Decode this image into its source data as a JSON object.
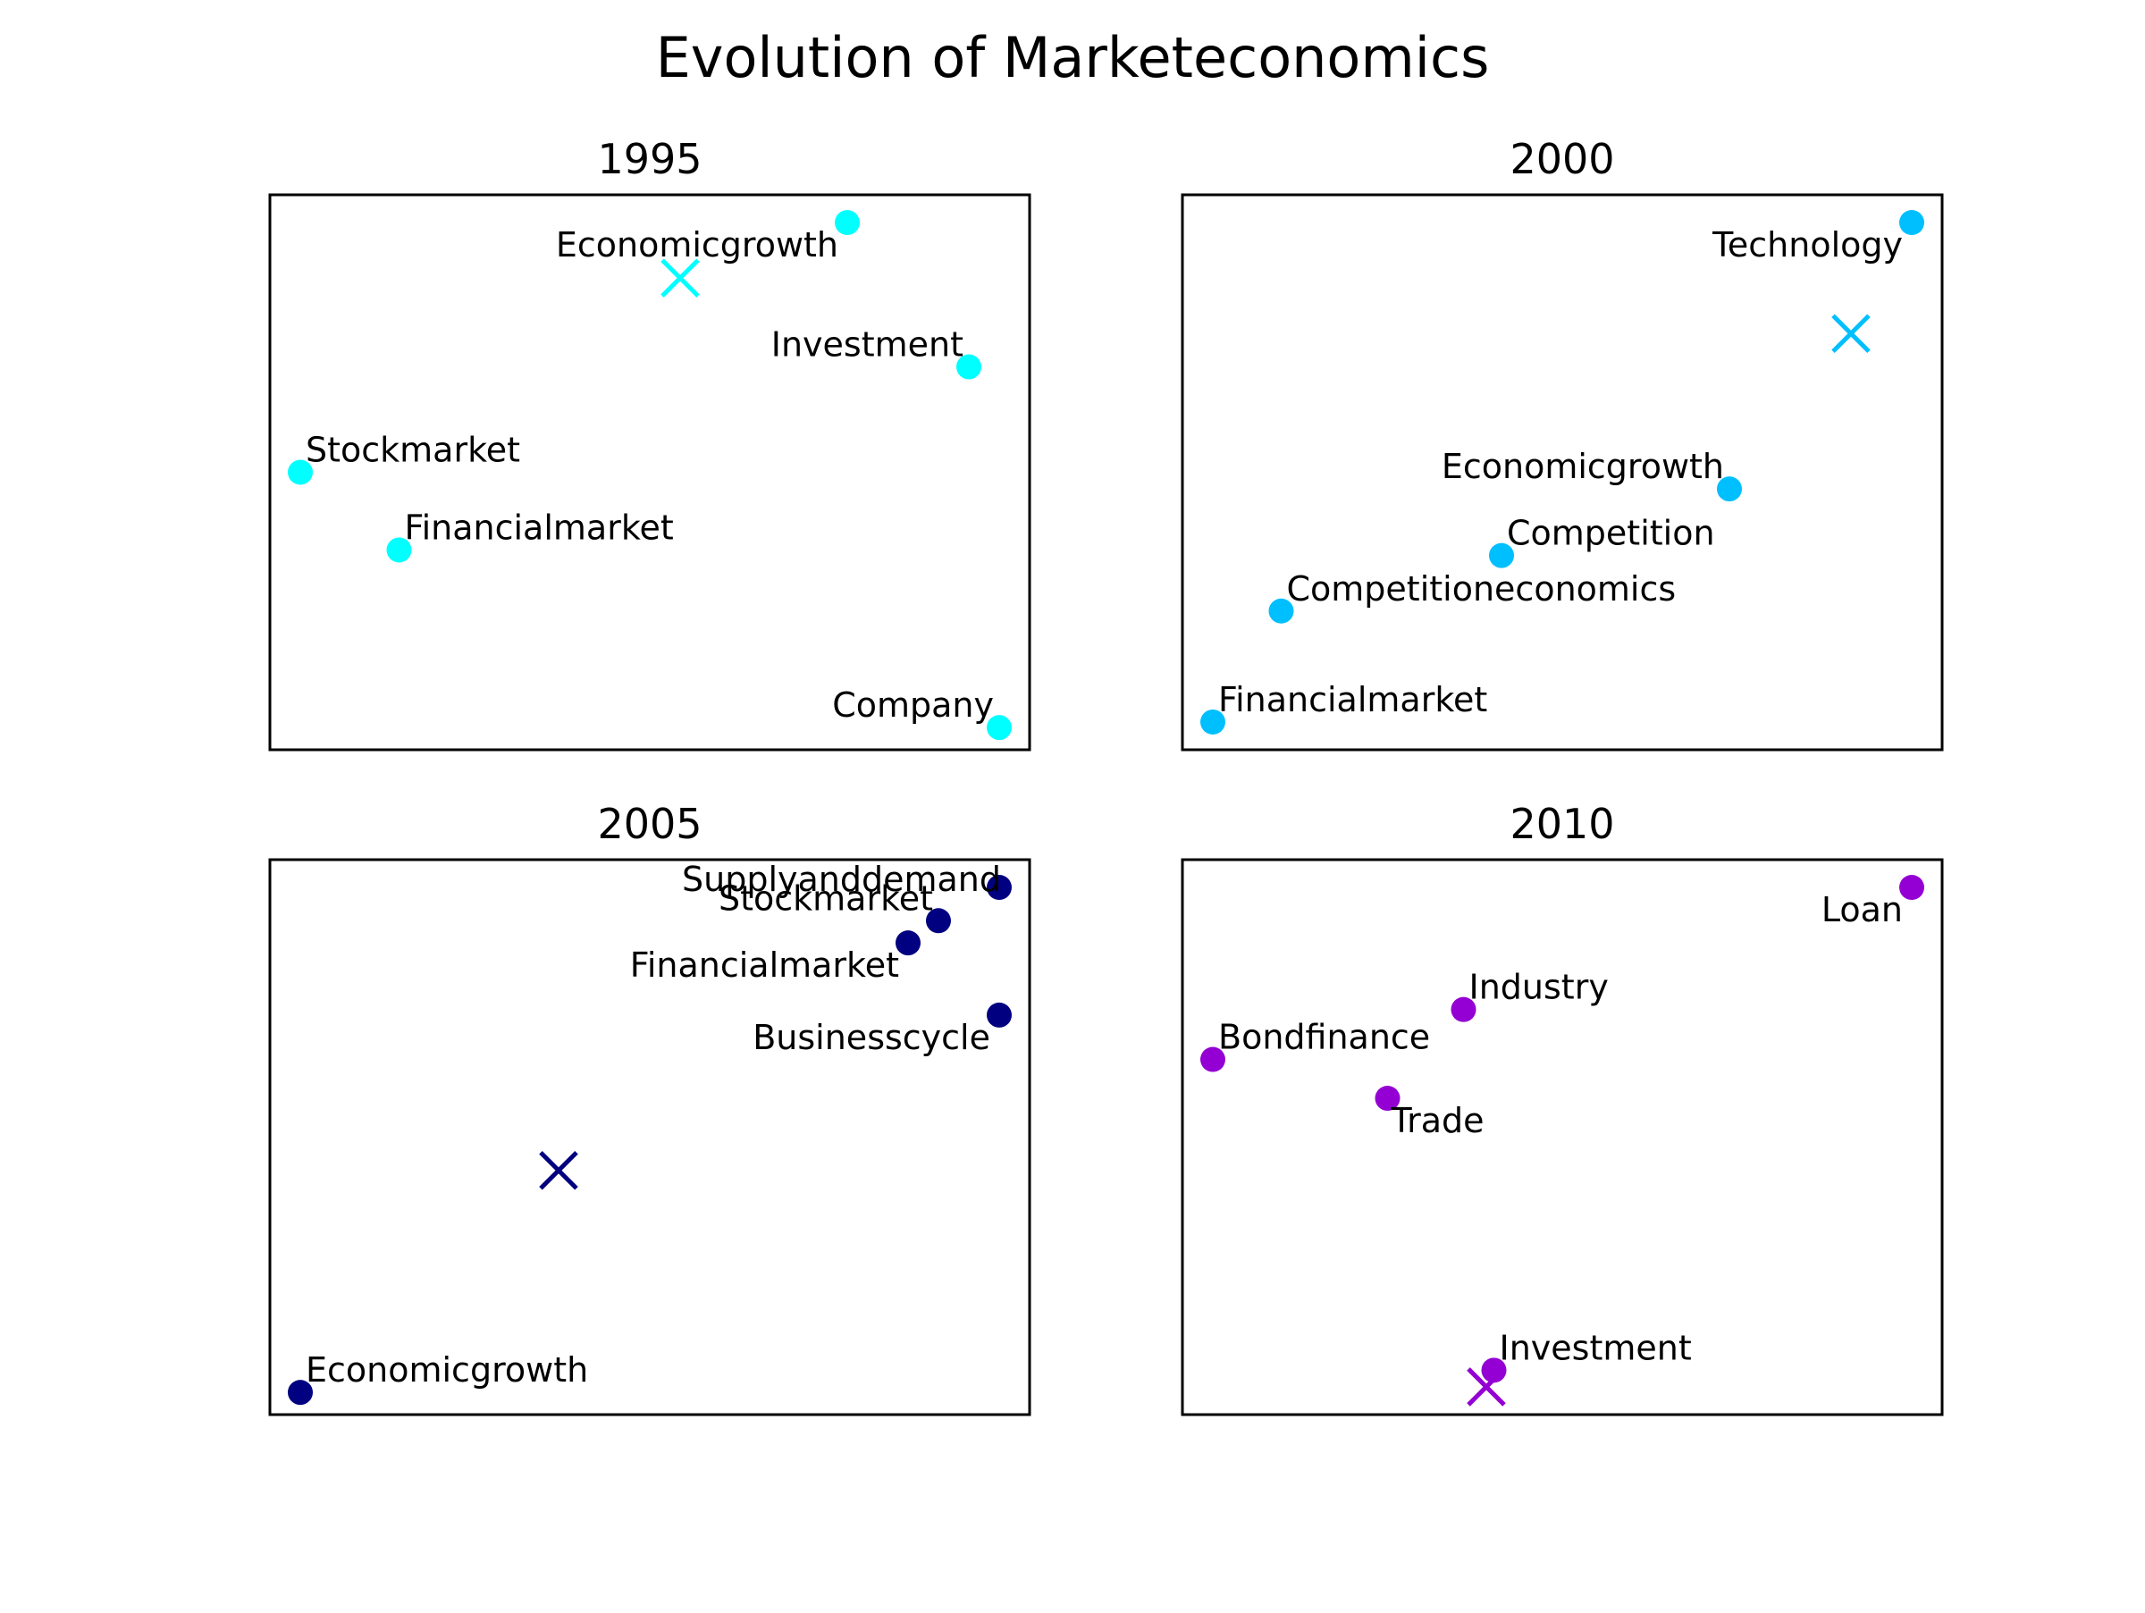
{
  "figure": {
    "title": "Evolution of Marketeconomics"
  },
  "chart_data": [
    {
      "type": "scatter",
      "title": "1995",
      "color": "#00ffff",
      "xlim": [
        0,
        1
      ],
      "ylim": [
        0,
        1
      ],
      "points": [
        {
          "label": "Economicgrowth",
          "x": 0.76,
          "y": 0.95,
          "anchor": "end",
          "pos": "below-left"
        },
        {
          "label": "Investment",
          "x": 0.92,
          "y": 0.69,
          "anchor": "end",
          "pos": "above-left"
        },
        {
          "label": "Stockmarket",
          "x": 0.04,
          "y": 0.5,
          "anchor": "start",
          "pos": "above-right"
        },
        {
          "label": "Financialmarket",
          "x": 0.17,
          "y": 0.36,
          "anchor": "start",
          "pos": "above-right"
        },
        {
          "label": "Company",
          "x": 0.96,
          "y": 0.04,
          "anchor": "end",
          "pos": "above-left"
        }
      ],
      "centroid": {
        "x": 0.54,
        "y": 0.85
      }
    },
    {
      "type": "scatter",
      "title": "2000",
      "color": "#00bfff",
      "xlim": [
        0,
        1
      ],
      "ylim": [
        0,
        1
      ],
      "points": [
        {
          "label": "Technology",
          "x": 0.96,
          "y": 0.95,
          "anchor": "end",
          "pos": "below-left"
        },
        {
          "label": "Economicgrowth",
          "x": 0.72,
          "y": 0.47,
          "anchor": "end",
          "pos": "above-left"
        },
        {
          "label": "Competition",
          "x": 0.42,
          "y": 0.35,
          "anchor": "start",
          "pos": "above-right"
        },
        {
          "label": "Competitioneconomics",
          "x": 0.13,
          "y": 0.25,
          "anchor": "start",
          "pos": "above-right"
        },
        {
          "label": "Financialmarket",
          "x": 0.04,
          "y": 0.05,
          "anchor": "start",
          "pos": "above-right"
        }
      ],
      "centroid": {
        "x": 0.88,
        "y": 0.75
      }
    },
    {
      "type": "scatter",
      "title": "2005",
      "color": "#000080",
      "xlim": [
        0,
        1
      ],
      "ylim": [
        0,
        1
      ],
      "points": [
        {
          "label": "Supplyanddemand",
          "x": 0.96,
          "y": 0.95,
          "anchor": "end",
          "pos": "far-left"
        },
        {
          "label": "Stockmarket",
          "x": 0.88,
          "y": 0.89,
          "anchor": "end",
          "pos": "above-left"
        },
        {
          "label": "Financialmarket",
          "x": 0.84,
          "y": 0.85,
          "anchor": "end",
          "pos": "below-left"
        },
        {
          "label": "Businesscycle",
          "x": 0.96,
          "y": 0.72,
          "anchor": "end",
          "pos": "below-left"
        },
        {
          "label": "Economicgrowth",
          "x": 0.04,
          "y": 0.04,
          "anchor": "start",
          "pos": "above-right"
        }
      ],
      "centroid": {
        "x": 0.38,
        "y": 0.44
      }
    },
    {
      "type": "scatter",
      "title": "2010",
      "color": "#9400d3",
      "xlim": [
        0,
        1
      ],
      "ylim": [
        0,
        1
      ],
      "points": [
        {
          "label": "Loan",
          "x": 0.96,
          "y": 0.95,
          "anchor": "end",
          "pos": "below-left"
        },
        {
          "label": "Industry",
          "x": 0.37,
          "y": 0.73,
          "anchor": "start",
          "pos": "above-right"
        },
        {
          "label": "Bondfinance",
          "x": 0.04,
          "y": 0.64,
          "anchor": "start",
          "pos": "above-right"
        },
        {
          "label": "Trade",
          "x": 0.27,
          "y": 0.57,
          "anchor": "start",
          "pos": "below-right"
        },
        {
          "label": "Investment",
          "x": 0.41,
          "y": 0.08,
          "anchor": "start",
          "pos": "above-right"
        }
      ],
      "centroid": {
        "x": 0.4,
        "y": 0.05
      }
    }
  ]
}
